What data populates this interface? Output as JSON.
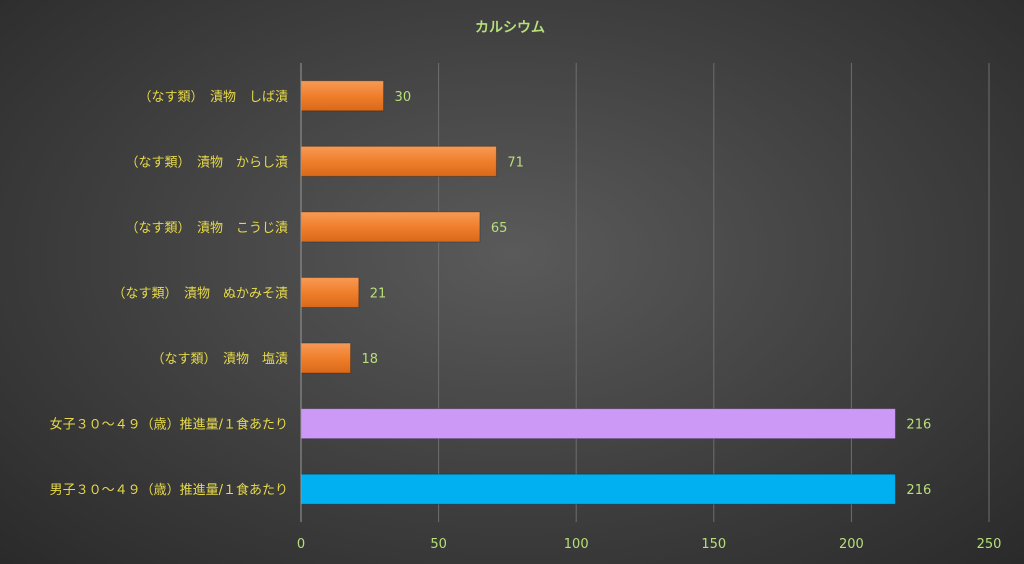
{
  "chart_data": {
    "type": "bar",
    "orientation": "horizontal",
    "title": "カルシウム",
    "categories": [
      "（なす類）　漬物　しば漬",
      "（なす類）　漬物　からし漬",
      "（なす類）　漬物　こうじ漬",
      "（なす類）　漬物　ぬかみそ漬",
      "（なす類）　漬物　塩漬",
      "女子３０～４９（歳）推進量/１食あたり",
      "男子３０～４９（歳）推進量/１食あたり"
    ],
    "values": [
      30,
      71,
      65,
      21,
      18,
      216,
      216
    ],
    "bar_colors": [
      "#f07f2c",
      "#f07f2c",
      "#f07f2c",
      "#f07f2c",
      "#f07f2c",
      "#cc99f7",
      "#00b0f0"
    ],
    "xlim": [
      0,
      250
    ],
    "xticks": [
      0,
      50,
      100,
      150,
      200,
      250
    ],
    "grid": true,
    "legend": "none"
  }
}
